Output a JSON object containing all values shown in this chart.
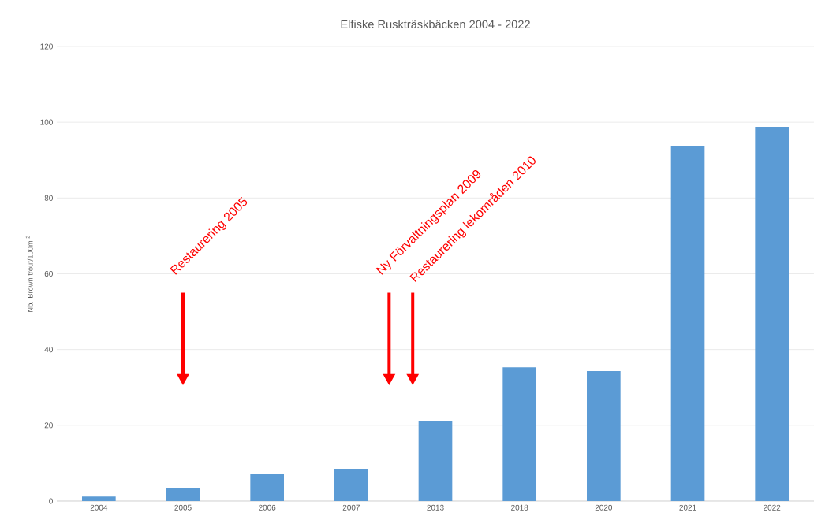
{
  "chart_data": {
    "type": "bar",
    "title": "Elfiske  Ruskträskbäcken 2004  -  2022",
    "ylabel": "Nb. Brown trout/100m $^{2}$",
    "categories": [
      "2004",
      "2005",
      "2006",
      "2007",
      "2013",
      "2018",
      "2020",
      "2021",
      "2022"
    ],
    "values": [
      1.2,
      3.5,
      7.1,
      8.5,
      21.2,
      35.3,
      34.3,
      93.8,
      98.8
    ],
    "color": "#5b9bd5",
    "ylim": [
      0,
      120
    ],
    "yticks": [
      0,
      20,
      40,
      60,
      80,
      100,
      120
    ],
    "grid": "y",
    "annotations": [
      "Restaurering 2005",
      "Ny Förvaltningsplan 2009",
      "Restaurering lekområden 2010"
    ]
  }
}
